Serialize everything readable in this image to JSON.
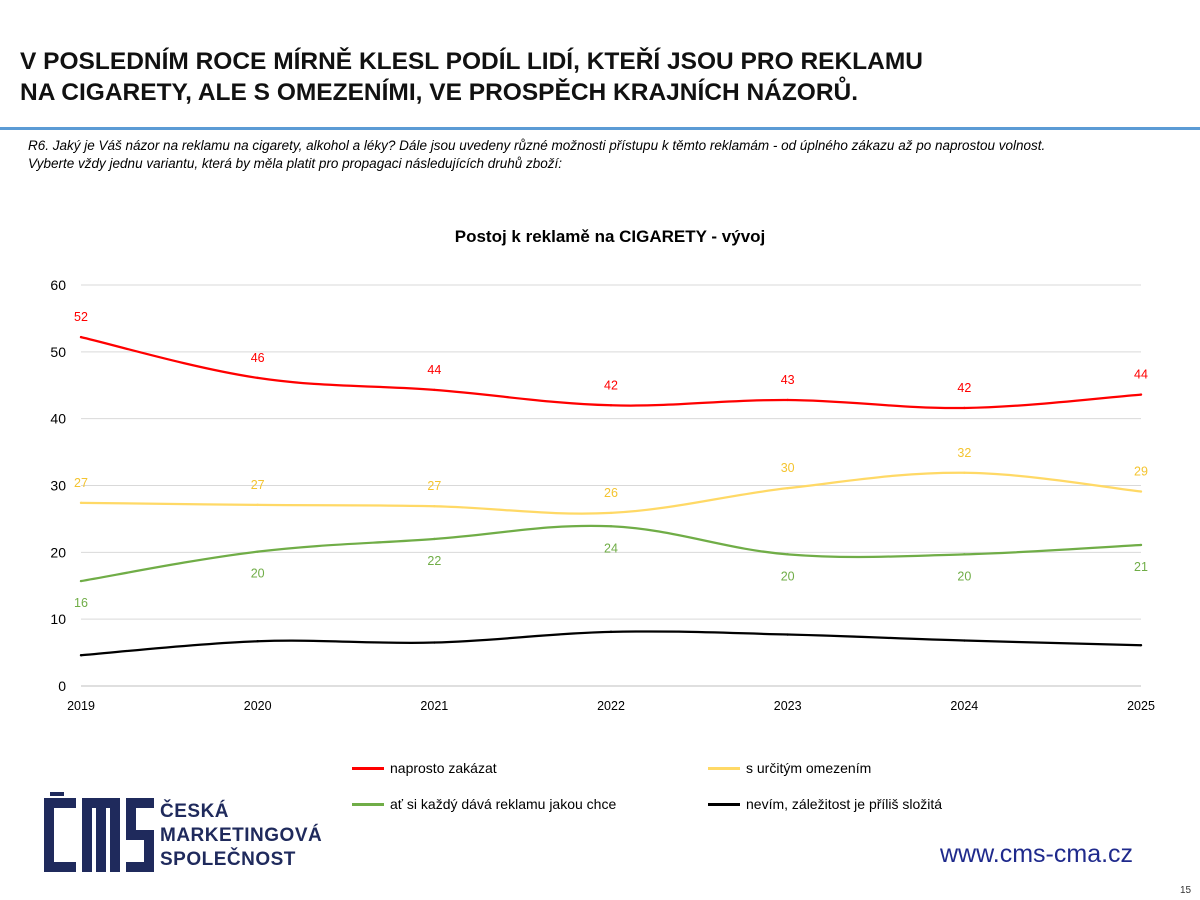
{
  "header": {
    "title_lines": [
      "V POSLEDNÍM ROCE MÍRNĚ KLESL PODÍL LIDÍ, KTEŘÍ JSOU PRO REKLAMU",
      "NA CIGARETY, ALE S OMEZENÍMI, VE PROSPĚCH KRAJNÍCH NÁZORŮ."
    ],
    "question_lines": [
      "R6.  Jaký je Váš názor na reklamu na cigarety, alkohol a léky? Dále jsou uvedeny různé možnosti přístupu k těmto reklamám - od úplného zákazu až po naprostou volnost.",
      "Vyberte vždy jednu variantu, která by měla platit pro propagaci následujících druhů zboží:"
    ]
  },
  "chart_data": {
    "type": "line",
    "title": "Postoj k reklamě na CIGARETY - vývoj",
    "xlabel": "",
    "ylabel": "",
    "x": [
      "2019",
      "2020",
      "2021",
      "2022",
      "2023",
      "2024",
      "2025"
    ],
    "ylim": [
      0,
      60
    ],
    "yticks": [
      0,
      10,
      20,
      30,
      40,
      50,
      60
    ],
    "grid": true,
    "legend_position": "bottom",
    "series": [
      {
        "name": "naprosto zakázat",
        "color": "#ff0000",
        "values": [
          52.2,
          46.1,
          44.3,
          42.0,
          42.8,
          41.6,
          43.6
        ],
        "labels": [
          "52",
          "46",
          "44",
          "42",
          "43",
          "42",
          "44"
        ],
        "label_position": "above"
      },
      {
        "name": "s určitým omezením",
        "color": "#ffd966",
        "values": [
          27.4,
          27.1,
          26.9,
          25.9,
          29.6,
          31.9,
          29.1
        ],
        "labels": [
          "27",
          "27",
          "27",
          "26",
          "30",
          "32",
          "29"
        ],
        "label_position": "above"
      },
      {
        "name": "ať si každý dává reklamu jakou chce",
        "color": "#70ad47",
        "values": [
          15.7,
          20.1,
          22.0,
          23.9,
          19.7,
          19.7,
          21.1
        ],
        "labels": [
          "16",
          "20",
          "22",
          "24",
          "20",
          "20",
          "21"
        ],
        "label_position": "below"
      },
      {
        "name": "nevím, záležitost je příliš složitá",
        "color": "#000000",
        "values": [
          4.6,
          6.7,
          6.5,
          8.1,
          7.7,
          6.8,
          6.1
        ],
        "labels": [],
        "label_position": "none"
      }
    ]
  },
  "footer": {
    "logo_lines": [
      "ČESKÁ",
      "MARKETINGOVÁ",
      "SPOLEČNOST"
    ],
    "logo_colors": {
      "navy": "#1f2a5c"
    },
    "website": "www.cms-cma.cz",
    "page_number": "15"
  }
}
